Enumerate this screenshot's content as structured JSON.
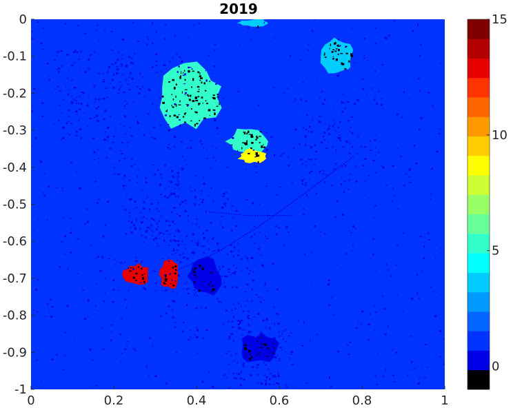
{
  "chart_data": {
    "type": "heatmap",
    "title": "2019",
    "xlabel": "",
    "ylabel": "",
    "xlim": [
      0,
      1
    ],
    "ylim": [
      -1,
      0
    ],
    "x_ticks": [
      "0",
      "0.2",
      "0.4",
      "0.6",
      "0.8",
      "1"
    ],
    "x_tick_values": [
      0,
      0.2,
      0.4,
      0.6,
      0.8,
      1
    ],
    "y_ticks": [
      "0",
      "-0.1",
      "-0.2",
      "-0.3",
      "-0.4",
      "-0.5",
      "-0.6",
      "-0.7",
      "-0.8",
      "-0.9",
      "-1"
    ],
    "y_tick_values": [
      0,
      -0.1,
      -0.2,
      -0.3,
      -0.4,
      -0.5,
      -0.6,
      -0.7,
      -0.8,
      -0.9,
      -1
    ],
    "background_value": 1,
    "colorbar": {
      "min": -1,
      "max": 15,
      "ticks": [
        "0",
        "5",
        "10",
        "15"
      ],
      "tick_values": [
        0,
        5,
        10,
        15
      ],
      "colors": [
        "#000000",
        "#0000e6",
        "#0033ff",
        "#0066ff",
        "#0099ff",
        "#00ccff",
        "#00ffff",
        "#33ffcc",
        "#66ff99",
        "#99ff66",
        "#ccff33",
        "#ffff00",
        "#ffcc00",
        "#ff9900",
        "#ff6600",
        "#ff3300",
        "#e60000",
        "#b30000",
        "#800000"
      ]
    },
    "regions": [
      {
        "label": "cyan-cluster-upper-left",
        "value": 5,
        "x": [
          0.3,
          0.47
        ],
        "y": [
          -0.3,
          -0.12
        ]
      },
      {
        "label": "cyan-cluster-mid",
        "value": 5,
        "x": [
          0.47,
          0.58
        ],
        "y": [
          -0.37,
          -0.29
        ]
      },
      {
        "label": "yellow-patch",
        "value": 9,
        "x": [
          0.5,
          0.57
        ],
        "y": [
          -0.39,
          -0.35
        ]
      },
      {
        "label": "light-blue-patch-top-right",
        "value": 4,
        "x": [
          0.7,
          0.78
        ],
        "y": [
          -0.15,
          -0.05
        ]
      },
      {
        "label": "light-blue-patch-top",
        "value": 4,
        "x": [
          0.5,
          0.58
        ],
        "y": [
          -0.02,
          0
        ]
      },
      {
        "label": "red-patch-left",
        "value": 13,
        "x": [
          0.22,
          0.29
        ],
        "y": [
          -0.72,
          -0.66
        ]
      },
      {
        "label": "red-patch-right",
        "value": 13,
        "x": [
          0.31,
          0.36
        ],
        "y": [
          -0.73,
          -0.65
        ]
      },
      {
        "label": "black-zero-patch-1",
        "value": 0,
        "x": [
          0.5,
          0.6
        ],
        "y": [
          -0.93,
          -0.85
        ]
      },
      {
        "label": "black-zero-patch-2",
        "value": 0,
        "x": [
          0.38,
          0.46
        ],
        "y": [
          -0.75,
          -0.64
        ]
      }
    ]
  }
}
